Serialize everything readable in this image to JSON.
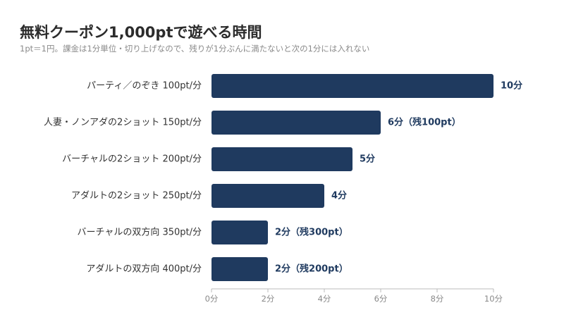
{
  "header": {
    "title": "無料クーポン1,000ptで遊べる時間",
    "subtitle": "1pt＝1円。課金は1分単位・切り上げなので、残りが1分ぶんに満たないと次の1分には入れない"
  },
  "colors": {
    "bar": "#1f3a5f",
    "value_label": "#1f3a5f",
    "axis": "#bbbbbb",
    "tick_text": "#8a8a8a"
  },
  "chart_data": {
    "type": "bar",
    "orientation": "horizontal",
    "categories": [
      "パーティ／のぞき 100pt/分",
      "人妻・ノンアダの2ショット 150pt/分",
      "バーチャルの2ショット 200pt/分",
      "アダルトの2ショット 250pt/分",
      "バーチャルの双方向 350pt/分",
      "アダルトの双方向 400pt/分"
    ],
    "values": [
      10,
      6,
      5,
      4,
      2,
      2
    ],
    "data_labels": [
      "10分",
      "6分（残100pt）",
      "5分",
      "4分",
      "2分（残300pt）",
      "2分（残200pt）"
    ],
    "xlim": [
      0,
      10
    ],
    "x_ticks": [
      0,
      2,
      4,
      6,
      8,
      10
    ],
    "x_tick_labels": [
      "0分",
      "2分",
      "4分",
      "6分",
      "8分",
      "10分"
    ],
    "grid": false,
    "legend": "none"
  }
}
